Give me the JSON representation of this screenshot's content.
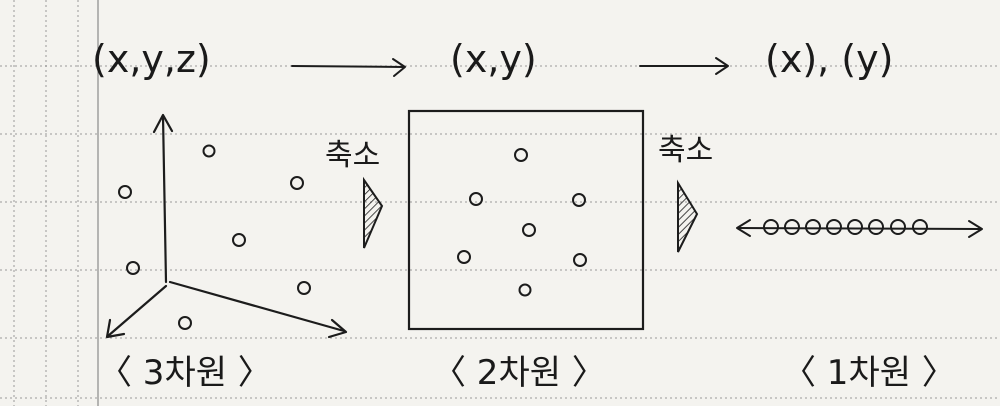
{
  "tuples": {
    "three_d": "(x,y,z)",
    "two_d": "(x,y)",
    "one_d": "(x), (y)"
  },
  "reduce_label": "축소",
  "captions": {
    "three_d": "〈 3차원 〉",
    "two_d": "〈 2차원 〉",
    "one_d": "〈 1차원 〉"
  },
  "colors": {
    "paper": "#f4f3ef",
    "ink": "#1c1c1c",
    "grid": "#8a8a8a"
  }
}
